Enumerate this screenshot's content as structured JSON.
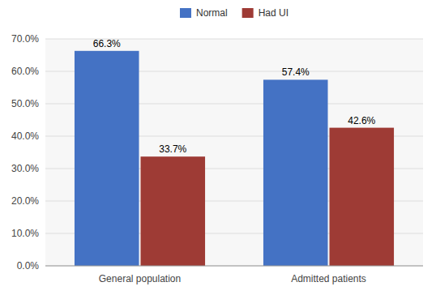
{
  "chart_data": {
    "type": "bar",
    "categories": [
      "General population",
      "Admitted patients"
    ],
    "series": [
      {
        "name": "Normal",
        "color": "#4472C4",
        "values": [
          66.3,
          57.4
        ],
        "value_labels": [
          "66.3%",
          "57.4%"
        ]
      },
      {
        "name": "Had UI",
        "color": "#9E3B35",
        "values": [
          33.7,
          42.6
        ],
        "value_labels": [
          "33.7%",
          "42.6%"
        ]
      }
    ],
    "ylim": [
      0,
      70
    ],
    "yticks": [
      {
        "value": 0,
        "label": "0.0%"
      },
      {
        "value": 10,
        "label": "10.0%"
      },
      {
        "value": 20,
        "label": "20.0%"
      },
      {
        "value": 30,
        "label": "30.0%"
      },
      {
        "value": 40,
        "label": "40.0%"
      },
      {
        "value": 50,
        "label": "50.0%"
      },
      {
        "value": 60,
        "label": "60.0%"
      },
      {
        "value": 70,
        "label": "70.0%"
      }
    ],
    "grid": true,
    "legend": "top",
    "data_labels": true
  }
}
